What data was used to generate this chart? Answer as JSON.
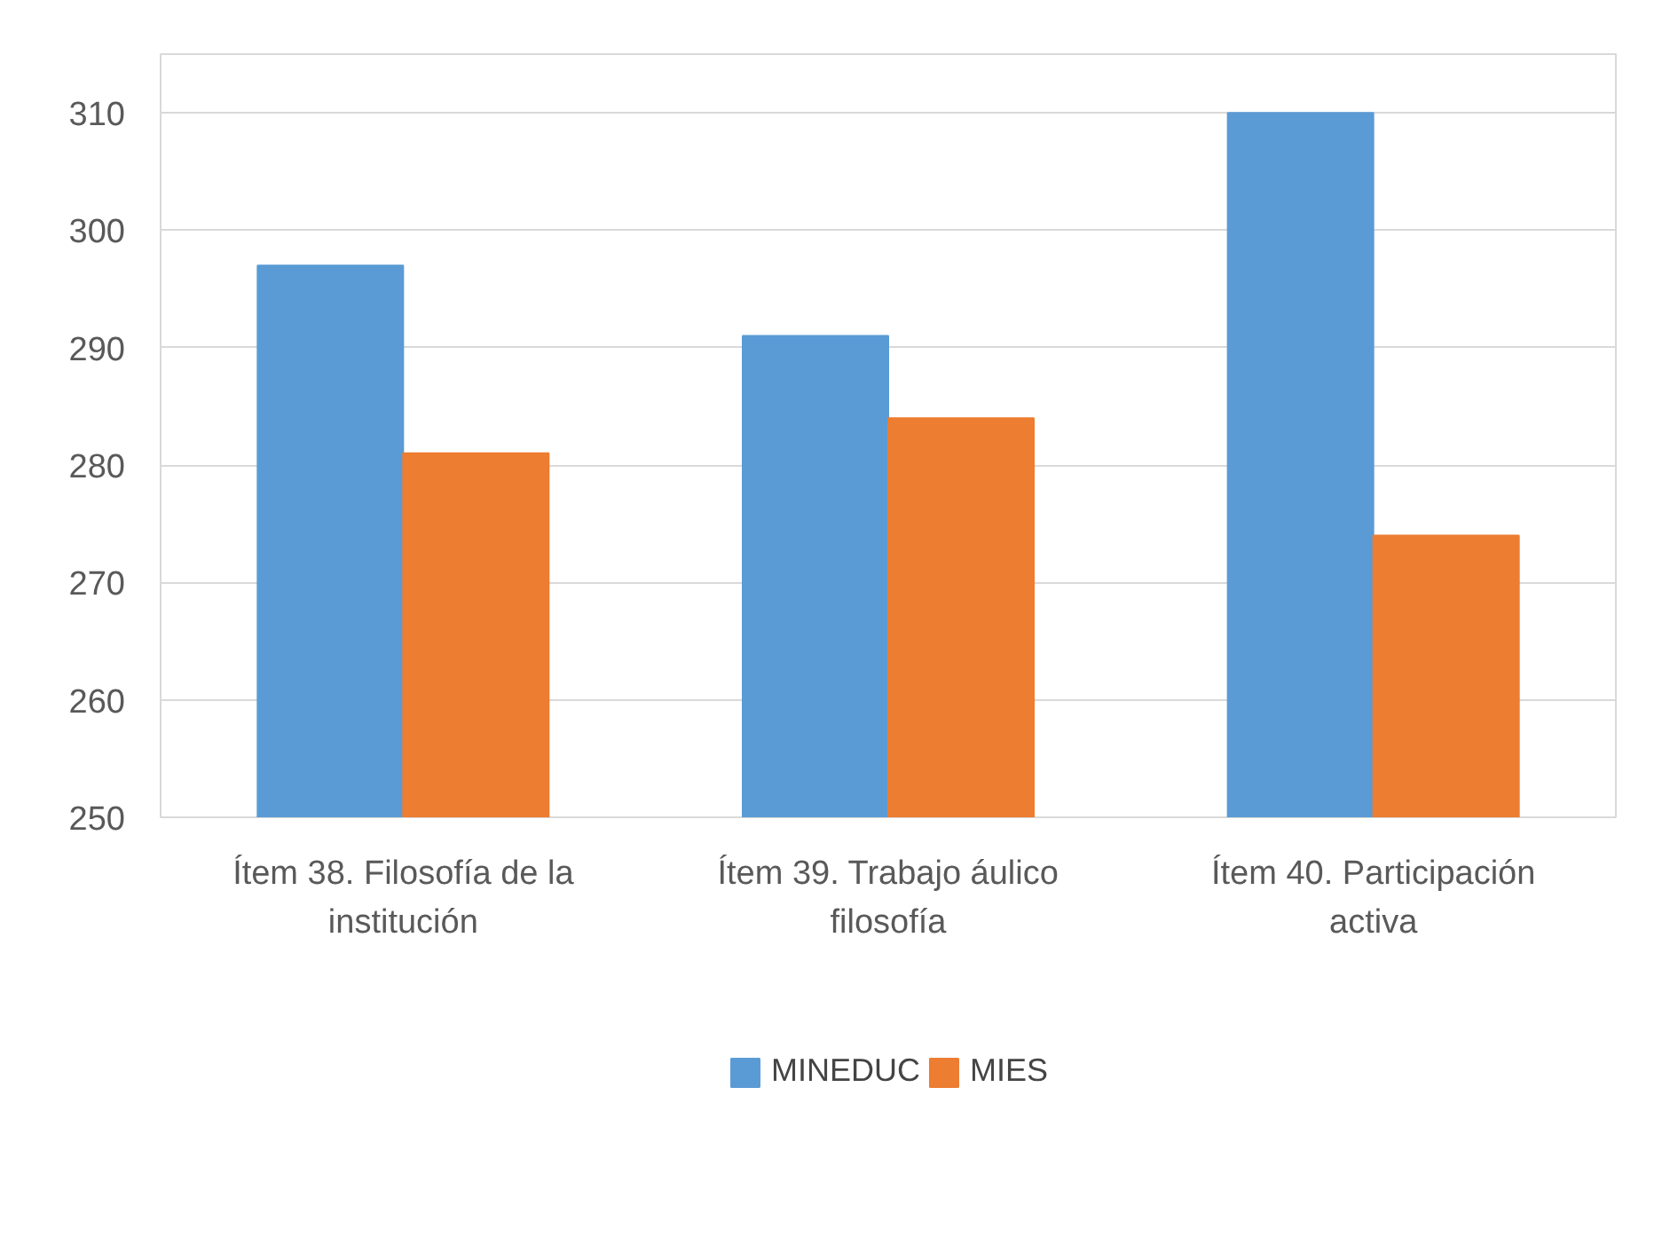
{
  "chart_data": {
    "type": "bar",
    "categories": [
      "Ítem 38. Filosofía de la institución",
      "Ítem 39. Trabajo áulico filosofía",
      "Ítem 40. Participación activa"
    ],
    "series": [
      {
        "name": "MINEDUC",
        "color": "#5b9bd5",
        "values": [
          297,
          291,
          310
        ]
      },
      {
        "name": "MIES",
        "color": "#ed7d31",
        "values": [
          281,
          284,
          274
        ]
      }
    ],
    "ylim": [
      250,
      315
    ],
    "yticks": [
      250,
      260,
      270,
      280,
      290,
      300,
      310
    ],
    "grid": "y",
    "legend": "bottom"
  }
}
